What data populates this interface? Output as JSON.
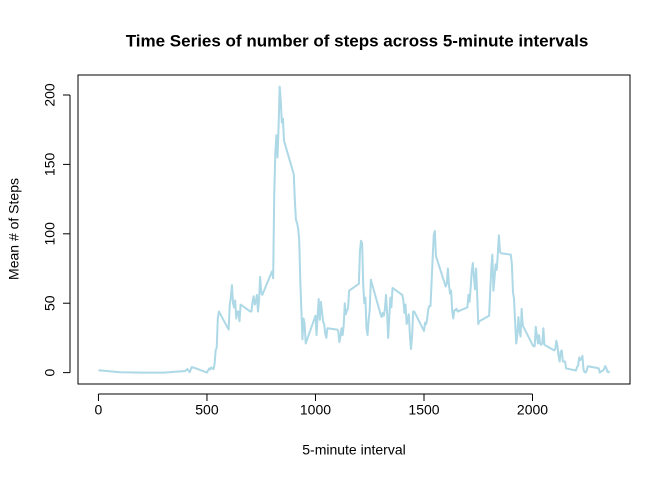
{
  "chart_data": {
    "type": "line",
    "title": "Time Series of number of steps across 5-minute intervals",
    "x_label": "5-minute interval",
    "y_label": "Mean # of Steps",
    "color": "#add8e6",
    "xlim": [
      -94.2,
      2449.2
    ],
    "ylim": [
      -8.2,
      214.4
    ],
    "xticks": [
      0,
      500,
      1000,
      1500,
      2000
    ],
    "yticks": [
      0,
      50,
      100,
      150,
      200
    ],
    "x": [
      0,
      100,
      200,
      300,
      400,
      410,
      420,
      430,
      440,
      450,
      500,
      505,
      510,
      515,
      520,
      525,
      530,
      535,
      540,
      545,
      550,
      555,
      600,
      605,
      610,
      615,
      620,
      625,
      630,
      635,
      640,
      645,
      650,
      655,
      700,
      705,
      710,
      715,
      720,
      725,
      730,
      735,
      740,
      745,
      750,
      755,
      800,
      805,
      810,
      815,
      820,
      825,
      830,
      835,
      840,
      845,
      850,
      855,
      900,
      905,
      910,
      915,
      920,
      925,
      930,
      935,
      940,
      945,
      950,
      955,
      1000,
      1005,
      1010,
      1015,
      1020,
      1025,
      1030,
      1035,
      1040,
      1045,
      1050,
      1055,
      1100,
      1105,
      1110,
      1115,
      1120,
      1125,
      1130,
      1135,
      1140,
      1145,
      1150,
      1155,
      1200,
      1205,
      1210,
      1215,
      1220,
      1225,
      1230,
      1235,
      1240,
      1245,
      1250,
      1255,
      1300,
      1305,
      1310,
      1315,
      1320,
      1325,
      1330,
      1335,
      1340,
      1345,
      1350,
      1355,
      1400,
      1405,
      1410,
      1415,
      1420,
      1425,
      1430,
      1435,
      1440,
      1445,
      1450,
      1455,
      1500,
      1505,
      1510,
      1515,
      1520,
      1525,
      1530,
      1535,
      1540,
      1545,
      1550,
      1555,
      1600,
      1605,
      1610,
      1615,
      1620,
      1625,
      1630,
      1635,
      1640,
      1645,
      1650,
      1655,
      1700,
      1705,
      1710,
      1715,
      1720,
      1725,
      1730,
      1735,
      1740,
      1745,
      1750,
      1755,
      1800,
      1805,
      1810,
      1815,
      1820,
      1825,
      1830,
      1835,
      1840,
      1845,
      1850,
      1855,
      1900,
      1905,
      1910,
      1915,
      1920,
      1925,
      1930,
      1935,
      1940,
      1945,
      1950,
      1955,
      2000,
      2005,
      2010,
      2015,
      2020,
      2025,
      2030,
      2035,
      2040,
      2045,
      2050,
      2055,
      2100,
      2105,
      2110,
      2115,
      2120,
      2125,
      2130,
      2135,
      2140,
      2145,
      2150,
      2155,
      2200,
      2205,
      2210,
      2215,
      2220,
      2225,
      2230,
      2235,
      2240,
      2245,
      2250,
      2255,
      2300,
      2305,
      2310,
      2315,
      2320,
      2325,
      2330,
      2335,
      2340,
      2345,
      2350,
      2355
    ],
    "values": [
      1.7,
      0.3,
      0,
      0,
      1.2,
      2.6,
      0.3,
      4,
      3.5,
      3,
      0,
      1.6,
      3,
      2.2,
      3.7,
      3,
      2.5,
      6,
      16,
      18,
      39,
      44,
      31,
      49,
      54,
      63,
      50,
      47,
      52,
      39,
      44,
      44,
      37,
      49,
      44,
      44,
      51,
      55,
      49,
      51,
      56,
      44,
      52,
      69,
      58,
      56,
      73,
      68,
      129,
      158,
      171,
      155,
      177,
      206,
      196,
      180,
      183,
      167,
      143,
      124,
      110,
      108,
      104,
      96,
      66,
      45,
      24,
      39,
      35,
      21,
      41,
      27,
      42,
      53,
      38,
      51,
      44,
      37,
      35,
      28,
      25,
      32,
      31,
      30,
      22,
      26,
      32,
      27,
      34,
      50,
      42,
      45,
      46,
      59,
      64,
      88,
      95,
      93,
      63,
      50,
      54,
      32,
      27,
      38,
      45,
      67,
      42,
      40,
      43,
      41,
      46,
      56,
      43,
      25,
      40,
      54,
      47,
      61,
      56,
      52,
      43,
      49,
      35,
      38,
      42,
      27,
      17,
      26,
      44,
      44,
      30,
      36,
      35,
      39,
      46,
      48,
      48,
      65,
      83,
      99,
      102,
      84,
      62,
      64,
      75,
      63,
      57,
      59,
      44,
      39,
      45,
      45,
      46,
      44,
      47,
      56,
      51,
      61,
      73,
      79,
      69,
      60,
      75,
      57,
      35,
      37,
      41,
      58,
      75,
      85,
      59,
      68,
      78,
      74,
      85,
      99,
      87,
      86,
      85,
      78,
      58,
      53,
      36,
      21,
      27,
      40,
      30,
      26,
      46,
      34,
      20,
      19,
      19,
      33,
      27,
      21,
      27,
      21,
      20,
      21,
      32,
      20,
      16,
      17,
      23,
      19,
      12,
      8,
      15,
      16,
      8,
      8,
      8,
      3,
      1.5,
      4,
      5,
      11,
      9,
      10,
      12,
      2,
      0.3,
      0.1,
      1.6,
      4.6,
      3.3,
      3.1,
      0,
      0.8,
      1,
      1.6,
      2.6,
      4.7,
      3.3,
      0.6,
      0.2,
      1.1
    ]
  }
}
